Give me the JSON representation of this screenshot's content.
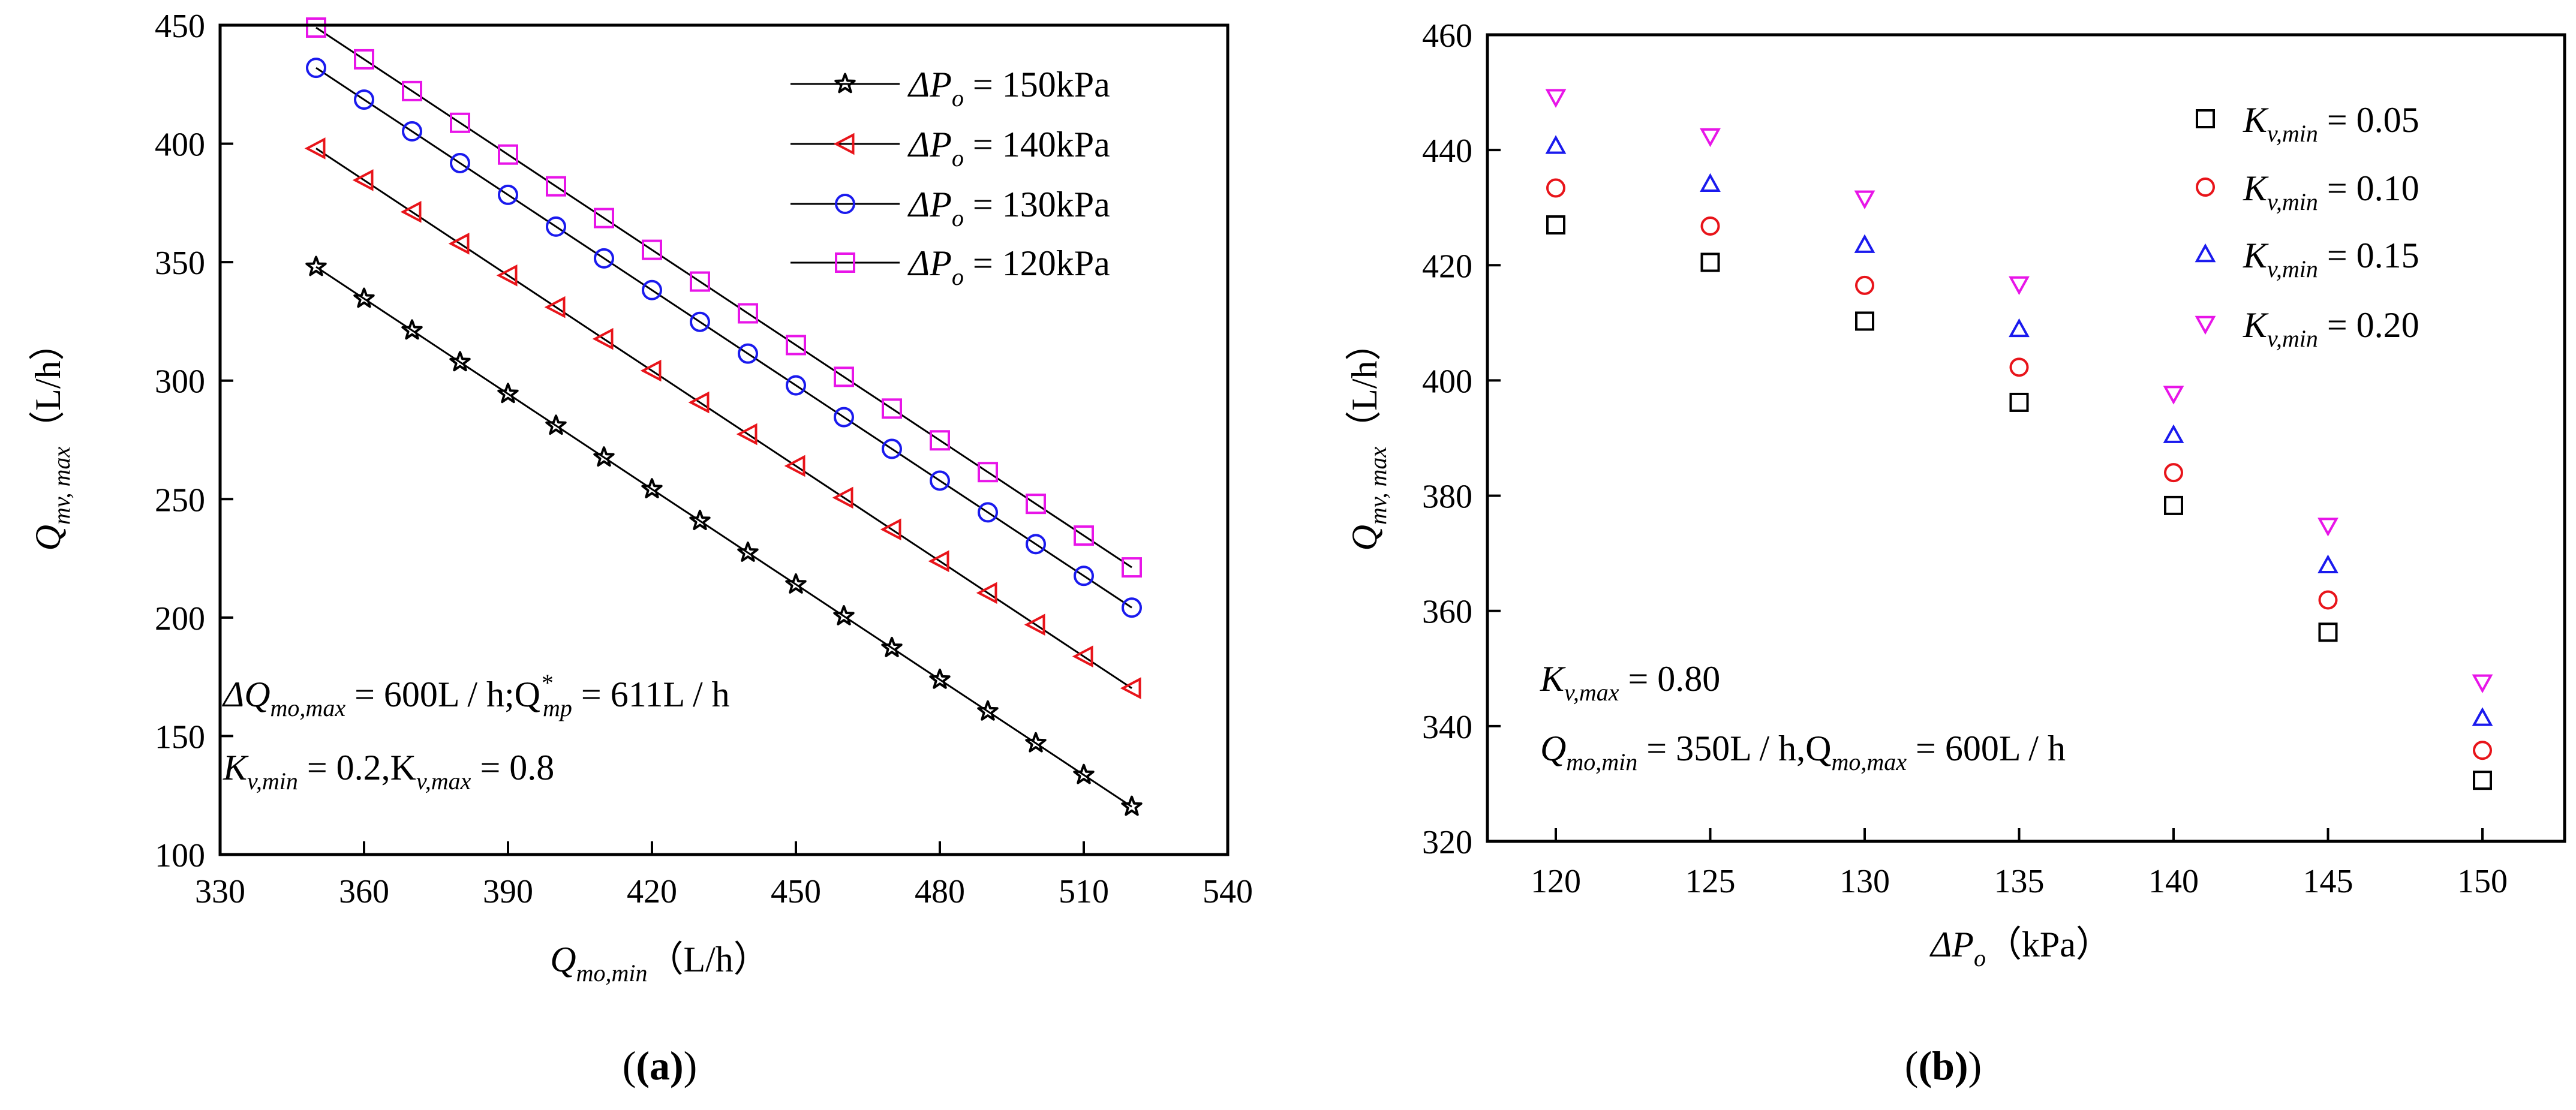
{
  "chart_data": [
    {
      "type": "line",
      "panel_label": "(a)",
      "xlabel": "Q_mo,min（L/h）",
      "xlabel_parts": {
        "main": "Q",
        "sub": "mo,min",
        "unit": "（L/h）"
      },
      "ylabel": "Q_mv, max（L/h）",
      "ylabel_parts": {
        "main": "Q",
        "sub": "mv, max",
        "unit": "（L/h）"
      },
      "xlim": [
        330,
        540
      ],
      "ylim": [
        100,
        450
      ],
      "xticks": [
        "330",
        "360",
        "390",
        "420",
        "450",
        "480",
        "510",
        "540"
      ],
      "yticks": [
        "100",
        "150",
        "200",
        "250",
        "300",
        "350",
        "400",
        "450"
      ],
      "x": [
        350,
        360,
        370,
        380,
        390,
        400,
        410,
        420,
        430,
        440,
        450,
        460,
        470,
        480,
        490,
        500,
        510,
        520
      ],
      "legend_position": "top-right",
      "series": [
        {
          "name": "ΔPo = 150kPa",
          "legend_main": "ΔP",
          "legend_sub": "o",
          "legend_rest": " = 150kPa",
          "marker": "star",
          "color": "#000000",
          "values": [
            348,
            334.6,
            321.2,
            307.8,
            294.4,
            281,
            267.6,
            254.2,
            240.8,
            227.4,
            214,
            200.6,
            187.2,
            173.8,
            160.4,
            147,
            133.6,
            120.2
          ]
        },
        {
          "name": "ΔPo = 140kPa",
          "legend_main": "ΔP",
          "legend_sub": "o",
          "legend_rest": " = 140kPa",
          "marker": "triangle-left",
          "color": "#e8141a",
          "values": [
            398,
            384.6,
            371.2,
            357.8,
            344.4,
            331,
            317.6,
            304.2,
            290.8,
            277.4,
            264,
            250.6,
            237.2,
            223.8,
            210.4,
            197,
            183.6,
            170.2
          ]
        },
        {
          "name": "ΔPo = 130kPa",
          "legend_main": "ΔP",
          "legend_sub": "o",
          "legend_rest": " = 130kPa",
          "marker": "circle",
          "color": "#1a1aee",
          "values": [
            432,
            418.6,
            405.2,
            391.8,
            378.4,
            365,
            351.6,
            338.2,
            324.8,
            311.4,
            298,
            284.6,
            271.2,
            257.8,
            244.4,
            231,
            217.6,
            204.2
          ]
        },
        {
          "name": "ΔPo = 120kPa",
          "legend_main": "ΔP",
          "legend_sub": "o",
          "legend_rest": " = 120kPa",
          "marker": "square",
          "color": "#e815e8",
          "values": [
            449,
            435.6,
            422.2,
            408.8,
            395.4,
            382,
            368.6,
            355.2,
            341.8,
            328.4,
            315,
            301.6,
            288.2,
            274.8,
            261.4,
            248,
            234.6,
            221.2
          ]
        }
      ],
      "annotations": [
        "ΔQ_mo,max = 600L / h;Q*_mp = 611L / h",
        "K_v,min = 0.2,K_v,max = 0.8"
      ],
      "annotation_line1": {
        "a": "ΔQ",
        "a_sub": "mo,max",
        "b": " = 600L / h;Q",
        "b_sup": "*",
        "b_sub": "mp",
        "c": " = 611L / h"
      },
      "annotation_line2": {
        "a": "K",
        "a_sub": "v,min",
        "b": " = 0.2,K",
        "b_sub": "v,max",
        "c": " = 0.8"
      }
    },
    {
      "type": "scatter",
      "panel_label": "(b)",
      "xlabel": "ΔP_o（kPa）",
      "xlabel_parts": {
        "main": "ΔP",
        "sub": "o",
        "unit": "（kPa）"
      },
      "ylabel": "Q_mv, max（L/h）",
      "ylabel_parts": {
        "main": "Q",
        "sub": "mv, max",
        "unit": "（L/h）"
      },
      "categories": [
        "120",
        "125",
        "130",
        "135",
        "140",
        "145",
        "150"
      ],
      "ylim": [
        320,
        460
      ],
      "yticks": [
        "320",
        "340",
        "360",
        "380",
        "400",
        "420",
        "440",
        "460"
      ],
      "legend_position": "top-right",
      "series": [
        {
          "name": "K_v,min = 0.05",
          "legend_main": "K",
          "legend_sub": "v,min",
          "legend_rest": " = 0.05",
          "marker": "square",
          "color": "#000000",
          "values": [
            427,
            420.5,
            410.3,
            396.2,
            378.3,
            356.3,
            330.6
          ]
        },
        {
          "name": "K_v,min = 0.10",
          "legend_main": "K",
          "legend_sub": "v,min",
          "legend_rest": " = 0.10",
          "marker": "circle",
          "color": "#e8141a",
          "values": [
            433.4,
            426.8,
            416.5,
            402.3,
            384,
            361.9,
            335.8
          ]
        },
        {
          "name": "K_v,min = 0.15",
          "legend_main": "K",
          "legend_sub": "v,min",
          "legend_rest": " = 0.15",
          "marker": "triangle-up",
          "color": "#1a1aee",
          "values": [
            440.7,
            434.1,
            423.5,
            408.9,
            390.5,
            367.9,
            341.4
          ]
        },
        {
          "name": "K_v,min = 0.20",
          "legend_main": "K",
          "legend_sub": "v,min",
          "legend_rest": " = 0.20",
          "marker": "triangle-down",
          "color": "#e815e8",
          "values": [
            449.2,
            442.4,
            431.6,
            416.7,
            397.7,
            374.8,
            347.6
          ]
        }
      ],
      "annotations": [
        "K_v,max = 0.80",
        "Q_mo,min = 350L / h,Q_mo,max = 600L / h"
      ],
      "annotation_line1": {
        "a": "K",
        "a_sub": "v,max",
        "b": " = 0.80"
      },
      "annotation_line2": {
        "a": "Q",
        "a_sub": "mo,min",
        "b": " = 350L / h,Q",
        "b_sub": "mo,max",
        "c": " = 600L / h"
      }
    }
  ]
}
